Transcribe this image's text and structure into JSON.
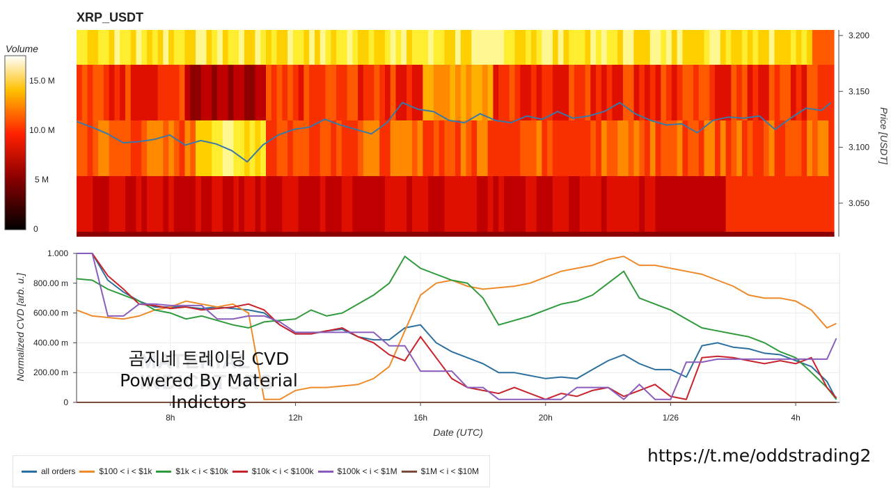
{
  "title": "XRP_USDT",
  "volume_colorbar": {
    "title": "Volume",
    "ticks": [
      "15.0 M",
      "10.0 M",
      "5 M",
      "0"
    ]
  },
  "watermark": [
    "MATERIAL",
    "INDICATORS"
  ],
  "overlay": {
    "line1": "곰지네 트레이딩 CVD",
    "line2": "Powered By Material Indictors"
  },
  "url": "https://t.me/oddstrading2",
  "legend": [
    {
      "label": "all orders",
      "color": "#2b6f9e"
    },
    {
      "label": "$100 < i < $1k",
      "color": "#ee8a2a"
    },
    {
      "label": "$1k < i < $10k",
      "color": "#2e9a3b"
    },
    {
      "label": "$10k < i < $100k",
      "color": "#c8232b"
    },
    {
      "label": "$100k < i < $1M",
      "color": "#8a5cbd"
    },
    {
      "label": "$1M < i < $10M",
      "color": "#7a4a3a"
    }
  ],
  "chart_data": [
    {
      "type": "heatmap",
      "title": "XRP_USDT",
      "ylabel": "Price [USDT]",
      "yticks": [
        "3.200",
        "3.150",
        "3.100",
        "3.050"
      ],
      "ylim": [
        3.02,
        3.205
      ],
      "colorbar": {
        "title": "Volume",
        "range": [
          0,
          17.5
        ]
      },
      "price_series": {
        "x": [
          5,
          5.5,
          6,
          6.5,
          7,
          7.5,
          8,
          8.5,
          9,
          9.5,
          10,
          10.5,
          11,
          11.5,
          12,
          12.5,
          13,
          13.5,
          14,
          14.5,
          15,
          15.5,
          16,
          16.5,
          17,
          17.5,
          18,
          18.5,
          19,
          19.5,
          20,
          20.5,
          21,
          21.5,
          22,
          22.5,
          23,
          23.5,
          24,
          24.5,
          25,
          25.5,
          26,
          26.5,
          27,
          27.5,
          28,
          28.5,
          29,
          29.3
        ],
        "y": [
          3.123,
          3.118,
          3.112,
          3.104,
          3.105,
          3.107,
          3.111,
          3.102,
          3.106,
          3.103,
          3.097,
          3.087,
          3.102,
          3.111,
          3.116,
          3.118,
          3.125,
          3.12,
          3.116,
          3.112,
          3.122,
          3.14,
          3.134,
          3.132,
          3.124,
          3.122,
          3.13,
          3.124,
          3.122,
          3.128,
          3.125,
          3.132,
          3.126,
          3.128,
          3.132,
          3.14,
          3.13,
          3.124,
          3.12,
          3.121,
          3.113,
          3.124,
          3.127,
          3.126,
          3.128,
          3.116,
          3.126,
          3.135,
          3.133,
          3.14
        ]
      }
    },
    {
      "type": "line",
      "xlabel": "Date (UTC)",
      "ylabel": "Normalized CVD [arb. u.]",
      "xticks": [
        {
          "x": 8,
          "label": "8h"
        },
        {
          "x": 12,
          "label": "12h"
        },
        {
          "x": 16,
          "label": "16h"
        },
        {
          "x": 20,
          "label": "20h"
        },
        {
          "x": 24,
          "label": "1/26"
        },
        {
          "x": 28,
          "label": "4h"
        }
      ],
      "yticks": [
        {
          "v": 1.0,
          "label": "1.000"
        },
        {
          "v": 0.8,
          "label": "800.00 m"
        },
        {
          "v": 0.6,
          "label": "600.00 m"
        },
        {
          "v": 0.4,
          "label": "400.00 m"
        },
        {
          "v": 0.2,
          "label": "200.00 m"
        },
        {
          "v": 0,
          "label": "0"
        }
      ],
      "xlim": [
        5,
        29.4
      ],
      "ylim": [
        0,
        1.0
      ],
      "grid": true,
      "legend": "bottom-left",
      "x": [
        5,
        5.5,
        6,
        6.5,
        7,
        7.5,
        8,
        8.5,
        9,
        9.5,
        10,
        10.5,
        11,
        11.5,
        12,
        12.5,
        13,
        13.5,
        14,
        14.5,
        15,
        15.5,
        16,
        16.5,
        17,
        17.5,
        18,
        18.5,
        19,
        19.5,
        20,
        20.5,
        21,
        21.5,
        22,
        22.5,
        23,
        23.5,
        24,
        24.5,
        25,
        25.5,
        26,
        26.5,
        27,
        27.5,
        28,
        28.5,
        29,
        29.3
      ],
      "series": [
        {
          "name": "all orders",
          "values": [
            1.0,
            1.0,
            0.82,
            0.74,
            0.68,
            0.64,
            0.64,
            0.64,
            0.63,
            0.64,
            0.63,
            0.62,
            0.6,
            0.52,
            0.46,
            0.46,
            0.48,
            0.49,
            0.44,
            0.42,
            0.42,
            0.5,
            0.52,
            0.4,
            0.34,
            0.3,
            0.26,
            0.2,
            0.2,
            0.18,
            0.16,
            0.17,
            0.16,
            0.22,
            0.28,
            0.32,
            0.26,
            0.22,
            0.22,
            0.17,
            0.38,
            0.4,
            0.37,
            0.36,
            0.33,
            0.32,
            0.28,
            0.24,
            0.14,
            0.02
          ]
        },
        {
          "name": "$100 < i < $1k",
          "values": [
            0.62,
            0.58,
            0.57,
            0.56,
            0.58,
            0.62,
            0.64,
            0.68,
            0.66,
            0.64,
            0.66,
            0.6,
            0.02,
            0.02,
            0.08,
            0.1,
            0.1,
            0.11,
            0.12,
            0.16,
            0.24,
            0.48,
            0.72,
            0.8,
            0.82,
            0.78,
            0.76,
            0.77,
            0.78,
            0.8,
            0.84,
            0.88,
            0.9,
            0.92,
            0.96,
            0.98,
            0.92,
            0.92,
            0.9,
            0.88,
            0.86,
            0.82,
            0.78,
            0.72,
            0.7,
            0.7,
            0.68,
            0.62,
            0.5,
            0.53
          ]
        },
        {
          "name": "$1k < i < $10k",
          "values": [
            0.83,
            0.82,
            0.76,
            0.72,
            0.68,
            0.62,
            0.6,
            0.56,
            0.58,
            0.55,
            0.52,
            0.5,
            0.54,
            0.55,
            0.56,
            0.62,
            0.58,
            0.6,
            0.66,
            0.72,
            0.8,
            0.98,
            0.9,
            0.86,
            0.82,
            0.8,
            0.7,
            0.52,
            0.55,
            0.58,
            0.62,
            0.66,
            0.68,
            0.72,
            0.8,
            0.88,
            0.7,
            0.66,
            0.62,
            0.56,
            0.5,
            0.48,
            0.46,
            0.44,
            0.4,
            0.34,
            0.3,
            0.2,
            0.1,
            0.02
          ]
        },
        {
          "name": "$10k < i < $100k",
          "values": [
            1.0,
            1.0,
            0.85,
            0.76,
            0.66,
            0.65,
            0.63,
            0.64,
            0.62,
            0.63,
            0.64,
            0.66,
            0.62,
            0.52,
            0.46,
            0.46,
            0.48,
            0.5,
            0.44,
            0.4,
            0.32,
            0.28,
            0.44,
            0.3,
            0.16,
            0.1,
            0.08,
            0.06,
            0.1,
            0.06,
            0.02,
            0.06,
            0.04,
            0.08,
            0.1,
            0.04,
            0.08,
            0.12,
            0.04,
            0.02,
            0.3,
            0.31,
            0.3,
            0.28,
            0.26,
            0.28,
            0.26,
            0.3,
            0.1,
            0.03
          ]
        },
        {
          "name": "$100k < i < $1M",
          "values": [
            1.0,
            1.0,
            0.58,
            0.58,
            0.66,
            0.66,
            0.65,
            0.65,
            0.65,
            0.56,
            0.56,
            0.58,
            0.58,
            0.54,
            0.47,
            0.47,
            0.47,
            0.47,
            0.47,
            0.47,
            0.38,
            0.38,
            0.21,
            0.21,
            0.21,
            0.1,
            0.1,
            0.02,
            0.02,
            0.02,
            0.02,
            0.02,
            0.1,
            0.1,
            0.1,
            0.02,
            0.12,
            0.02,
            0.02,
            0.27,
            0.27,
            0.29,
            0.29,
            0.29,
            0.29,
            0.29,
            0.29,
            0.29,
            0.29,
            0.43
          ]
        },
        {
          "name": "$1M < i < $10M",
          "values": [
            0,
            0,
            0,
            0,
            0,
            0,
            0,
            0,
            0,
            0,
            0,
            0,
            0,
            0,
            0,
            0,
            0,
            0,
            0,
            0,
            0,
            0,
            0,
            0,
            0,
            0,
            0,
            0,
            0,
            0,
            0,
            0,
            0,
            0,
            0,
            0,
            0,
            0,
            0,
            0,
            0,
            0,
            0,
            0,
            0,
            0,
            0,
            0,
            0,
            0
          ]
        }
      ]
    }
  ]
}
